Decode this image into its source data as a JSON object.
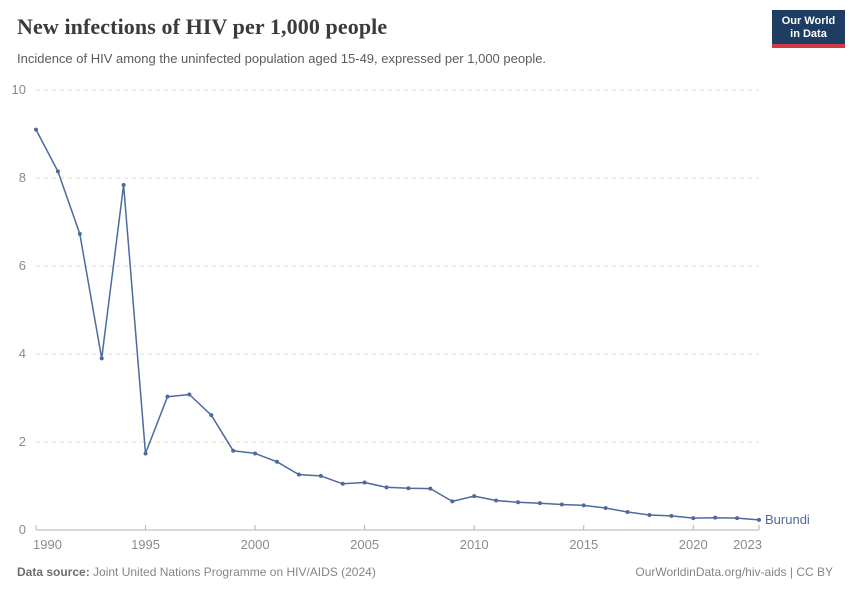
{
  "header": {
    "title": "New infections of HIV per 1,000 people",
    "subtitle": "Incidence of HIV among the uninfected population aged 15-49, expressed per 1,000 people.",
    "logo": {
      "line1": "Our World",
      "line2": "in Data",
      "bg_color": "#1d3d63",
      "accent_color": "#cf3a45"
    }
  },
  "chart_data": {
    "type": "line",
    "title": "New infections of HIV per 1,000 people",
    "xlabel": "",
    "ylabel": "",
    "xlim": [
      1990,
      2023
    ],
    "ylim": [
      0,
      10
    ],
    "grid": true,
    "legend_position": "line-end-label",
    "x_ticks": [
      1990,
      1995,
      2000,
      2005,
      2010,
      2015,
      2020,
      2023
    ],
    "y_ticks": [
      0,
      2,
      4,
      6,
      8,
      10
    ],
    "x": [
      1990,
      1991,
      1992,
      1993,
      1994,
      1995,
      1996,
      1997,
      1998,
      1999,
      2000,
      2001,
      2002,
      2003,
      2004,
      2005,
      2006,
      2007,
      2008,
      2009,
      2010,
      2011,
      2012,
      2013,
      2014,
      2015,
      2016,
      2017,
      2018,
      2019,
      2020,
      2021,
      2022,
      2023
    ],
    "series": [
      {
        "name": "Burundi",
        "color": "#4c6b9e",
        "values": [
          9.1,
          8.15,
          6.73,
          3.9,
          7.84,
          1.74,
          3.03,
          3.08,
          2.61,
          1.8,
          1.74,
          1.55,
          1.26,
          1.23,
          1.05,
          1.08,
          0.97,
          0.95,
          0.94,
          0.65,
          0.77,
          0.67,
          0.63,
          0.61,
          0.58,
          0.56,
          0.5,
          0.41,
          0.34,
          0.32,
          0.27,
          0.28,
          0.27,
          0.23
        ]
      }
    ],
    "style": {
      "grid_color": "#dcdcdc",
      "axis_color": "#b3b3b3",
      "tick_label_color": "#8b8b8b"
    }
  },
  "footer": {
    "source_label": "Data source:",
    "source_text": " Joint United Nations Programme on HIV/AIDS (2024)",
    "rights": "OurWorldinData.org/hiv-aids | CC BY"
  }
}
